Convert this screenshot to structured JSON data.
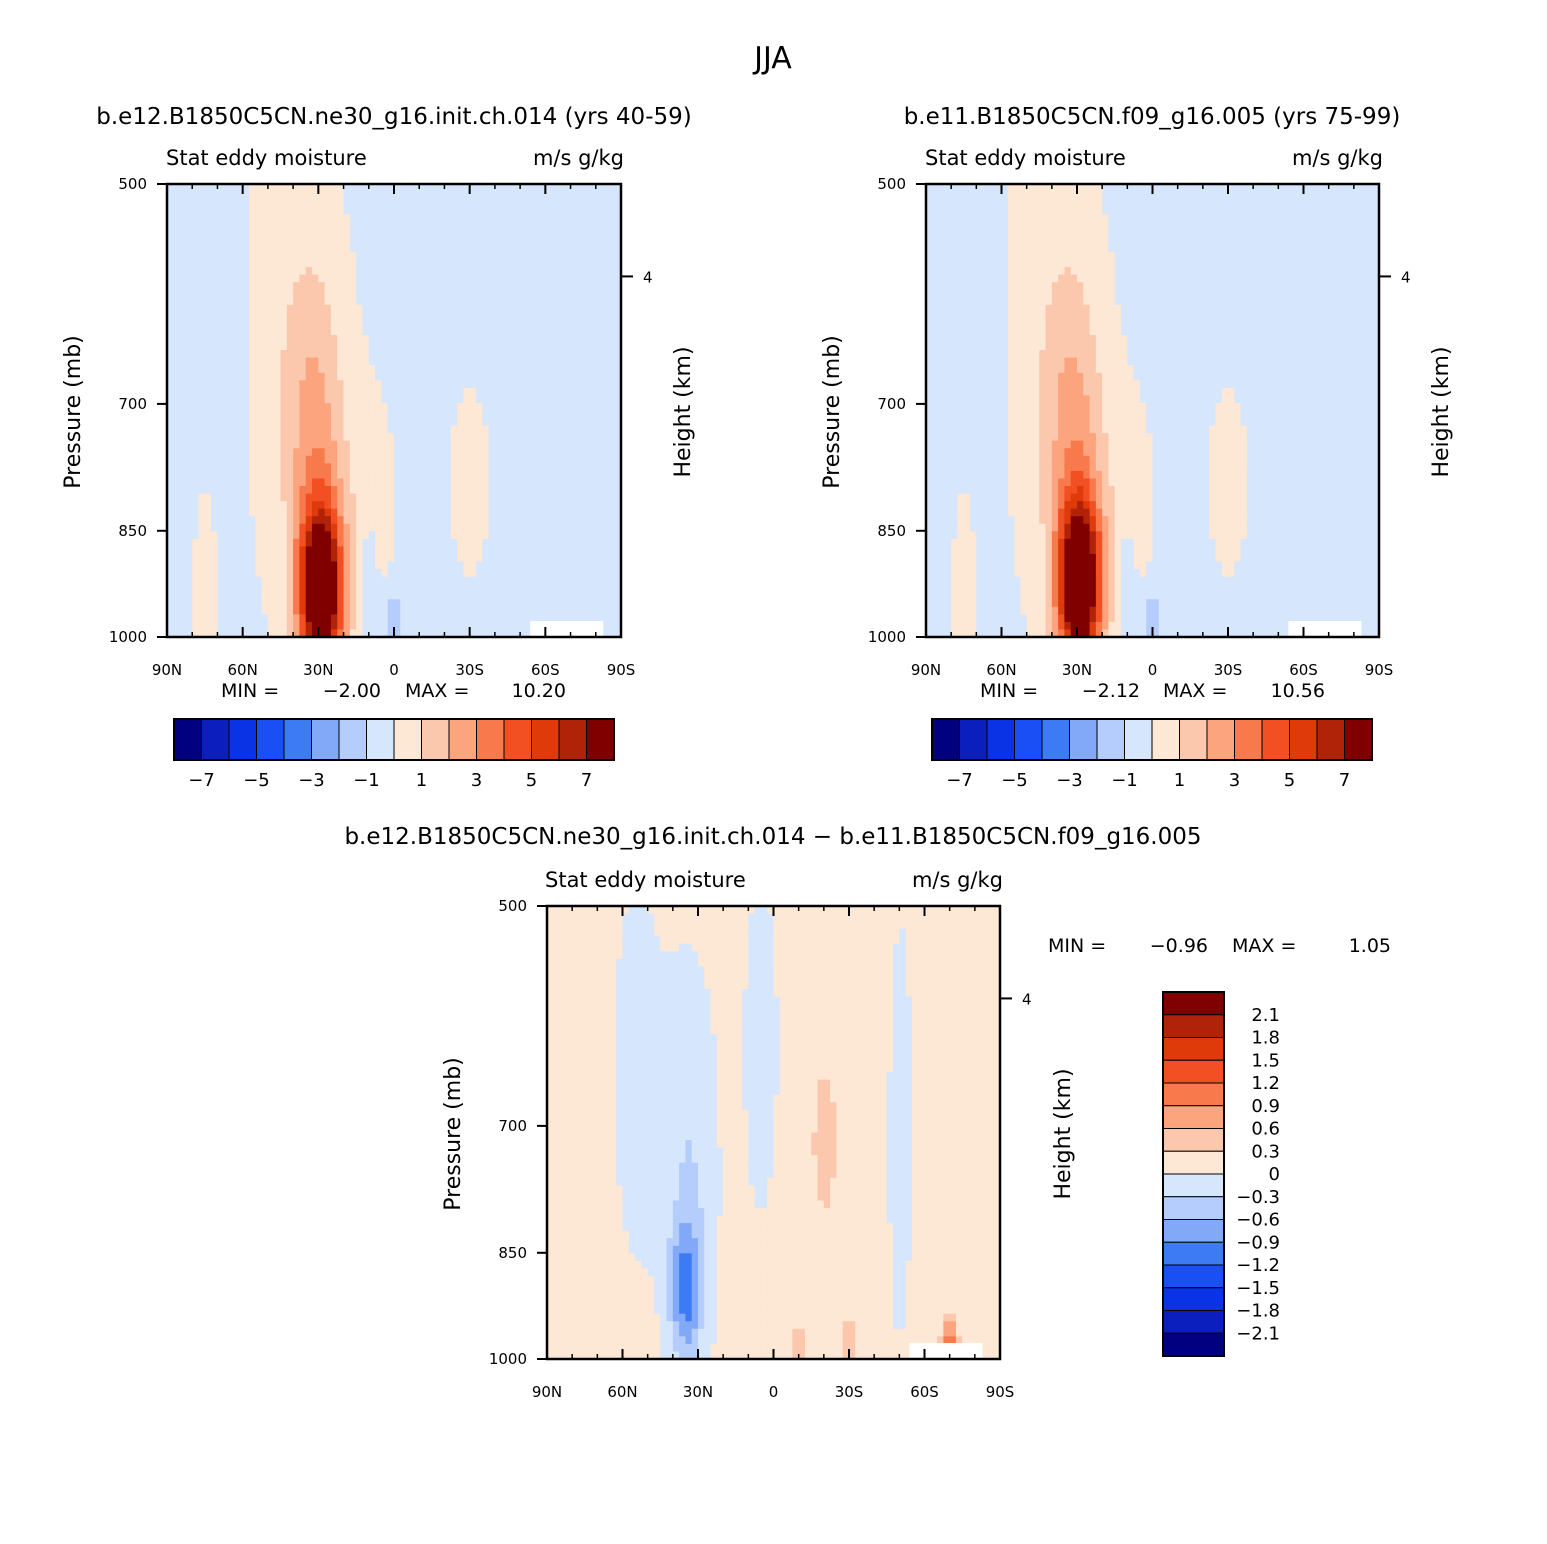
{
  "figure": {
    "title": "JJA"
  },
  "colors": {
    "left_right_levels": [
      "#000080",
      "#0a1fbe",
      "#0a33e6",
      "#1a4ff5",
      "#3d7bf5",
      "#82a9f8",
      "#b4cdfc",
      "#d6e6fd",
      "#fde7d5",
      "#fcc8ad",
      "#fba47e",
      "#f87a4c",
      "#f24f23",
      "#df3a09",
      "#b02309",
      "#800000"
    ],
    "diff_levels": [
      "#800000",
      "#b02309",
      "#df3a09",
      "#f24f23",
      "#f87a4c",
      "#fba47e",
      "#fcc8ad",
      "#fde7d5",
      "#d6e6fd",
      "#b4cdfc",
      "#82a9f8",
      "#3d7bf5",
      "#1a4ff5",
      "#0a33e6",
      "#0a1fbe",
      "#000080"
    ],
    "missing": "#ffffff"
  },
  "chart_data": [
    {
      "type": "heatmap",
      "title": "b.e12.B1850C5CN.ne30_g16.init.ch.014 (yrs 40-59)",
      "subtitle_left": "Stat eddy moisture",
      "subtitle_right": "m/s g/kg",
      "xlabel": "",
      "ylabel": "Pressure (mb)",
      "ylabel_right": "Height (km)",
      "x_ticks": [
        "90N",
        "60N",
        "30N",
        "0",
        "30S",
        "60S",
        "90S"
      ],
      "x_range": [
        90,
        -90
      ],
      "y_ticks": [
        "500",
        "700",
        "850",
        "1000"
      ],
      "y_tick_values": [
        500,
        700,
        850,
        1000
      ],
      "y_range": [
        500,
        1000
      ],
      "y_scale": "log",
      "right_ticks": [
        "4"
      ],
      "right_tick_values": [
        4
      ],
      "min_label": "MIN =",
      "min_value": "−2.00",
      "max_label": "MAX =",
      "max_value": "10.20",
      "colorbar": {
        "orientation": "horizontal",
        "labels": [
          "−7",
          "−5",
          "−3",
          "−1",
          "1",
          "3",
          "5",
          "7"
        ]
      },
      "peak": {
        "lat": 29,
        "pressure": 940,
        "value": 10.2
      },
      "structure": [
        {
          "feature": "moist eddy maximum",
          "lat": 29,
          "pressure": 940,
          "value": 10.2
        },
        {
          "feature": "positive lobe",
          "lat": 10,
          "pressure": 820,
          "value": 0.6
        },
        {
          "feature": "positive lobe",
          "lat": -30,
          "pressure": 790,
          "value": 0.5
        },
        {
          "feature": "negative pocket",
          "lat": 10,
          "pressure": 920,
          "value": -1.2
        },
        {
          "feature": "negative pocket",
          "lat": 0,
          "pressure": 975,
          "value": -1.5
        },
        {
          "feature": "negative pocket",
          "lat": -60,
          "pressure": 990,
          "value": -0.8
        }
      ]
    },
    {
      "type": "heatmap",
      "title": "b.e11.B1850C5CN.f09_g16.005 (yrs 75-99)",
      "subtitle_left": "Stat eddy moisture",
      "subtitle_right": "m/s g/kg",
      "xlabel": "",
      "ylabel": "Pressure (mb)",
      "ylabel_right": "Height (km)",
      "x_ticks": [
        "90N",
        "60N",
        "30N",
        "0",
        "30S",
        "60S",
        "90S"
      ],
      "x_range": [
        90,
        -90
      ],
      "y_ticks": [
        "500",
        "700",
        "850",
        "1000"
      ],
      "y_tick_values": [
        500,
        700,
        850,
        1000
      ],
      "y_range": [
        500,
        1000
      ],
      "y_scale": "log",
      "right_ticks": [
        "4"
      ],
      "right_tick_values": [
        4
      ],
      "min_label": "MIN =",
      "min_value": "−2.12",
      "max_label": "MAX =",
      "max_value": "10.56",
      "colorbar": {
        "orientation": "horizontal",
        "labels": [
          "−7",
          "−5",
          "−3",
          "−1",
          "1",
          "3",
          "5",
          "7"
        ]
      },
      "peak": {
        "lat": 29,
        "pressure": 930,
        "value": 10.56
      },
      "structure": [
        {
          "feature": "moist eddy maximum",
          "lat": 29,
          "pressure": 930,
          "value": 10.56
        },
        {
          "feature": "positive lobe",
          "lat": 12,
          "pressure": 800,
          "value": 0.6
        },
        {
          "feature": "positive lobe",
          "lat": -28,
          "pressure": 780,
          "value": 0.5
        },
        {
          "feature": "negative pocket",
          "lat": 10,
          "pressure": 930,
          "value": -1.2
        },
        {
          "feature": "negative pocket",
          "lat": 0,
          "pressure": 975,
          "value": -1.5
        },
        {
          "feature": "negative pocket",
          "lat": -65,
          "pressure": 985,
          "value": -0.9
        }
      ]
    },
    {
      "type": "heatmap",
      "title": "b.e12.B1850C5CN.ne30_g16.init.ch.014 − b.e11.B1850C5CN.f09_g16.005",
      "subtitle_left": "Stat eddy moisture",
      "subtitle_right": "m/s g/kg",
      "xlabel": "",
      "ylabel": "Pressure (mb)",
      "ylabel_right": "Height (km)",
      "x_ticks": [
        "90N",
        "60N",
        "30N",
        "0",
        "30S",
        "60S",
        "90S"
      ],
      "x_range": [
        90,
        -90
      ],
      "y_ticks": [
        "500",
        "700",
        "850",
        "1000"
      ],
      "y_tick_values": [
        500,
        700,
        850,
        1000
      ],
      "y_range": [
        500,
        1000
      ],
      "y_scale": "log",
      "right_ticks": [
        "4"
      ],
      "right_tick_values": [
        4
      ],
      "min_label": "MIN =",
      "min_value": "−0.96",
      "max_label": "MAX =",
      "max_value": "1.05",
      "colorbar": {
        "orientation": "vertical",
        "labels": [
          "2.1",
          "1.8",
          "1.5",
          "1.2",
          "0.9",
          "0.6",
          "0.3",
          "0",
          "−0.3",
          "−0.6",
          "−0.9",
          "−1.2",
          "−1.5",
          "−1.8",
          "−2.1"
        ]
      },
      "structure": [
        {
          "feature": "negative anomaly",
          "lat": 35,
          "pressure": 900,
          "value": -0.96
        },
        {
          "feature": "positive anomaly",
          "lat": -70,
          "pressure": 975,
          "value": 1.05
        },
        {
          "feature": "positive anomaly",
          "lat": -20,
          "pressure": 720,
          "value": 0.4
        },
        {
          "feature": "positive anomaly",
          "lat": -30,
          "pressure": 975,
          "value": 0.4
        },
        {
          "feature": "positive anomaly",
          "lat": -10,
          "pressure": 990,
          "value": 0.35
        }
      ]
    }
  ]
}
